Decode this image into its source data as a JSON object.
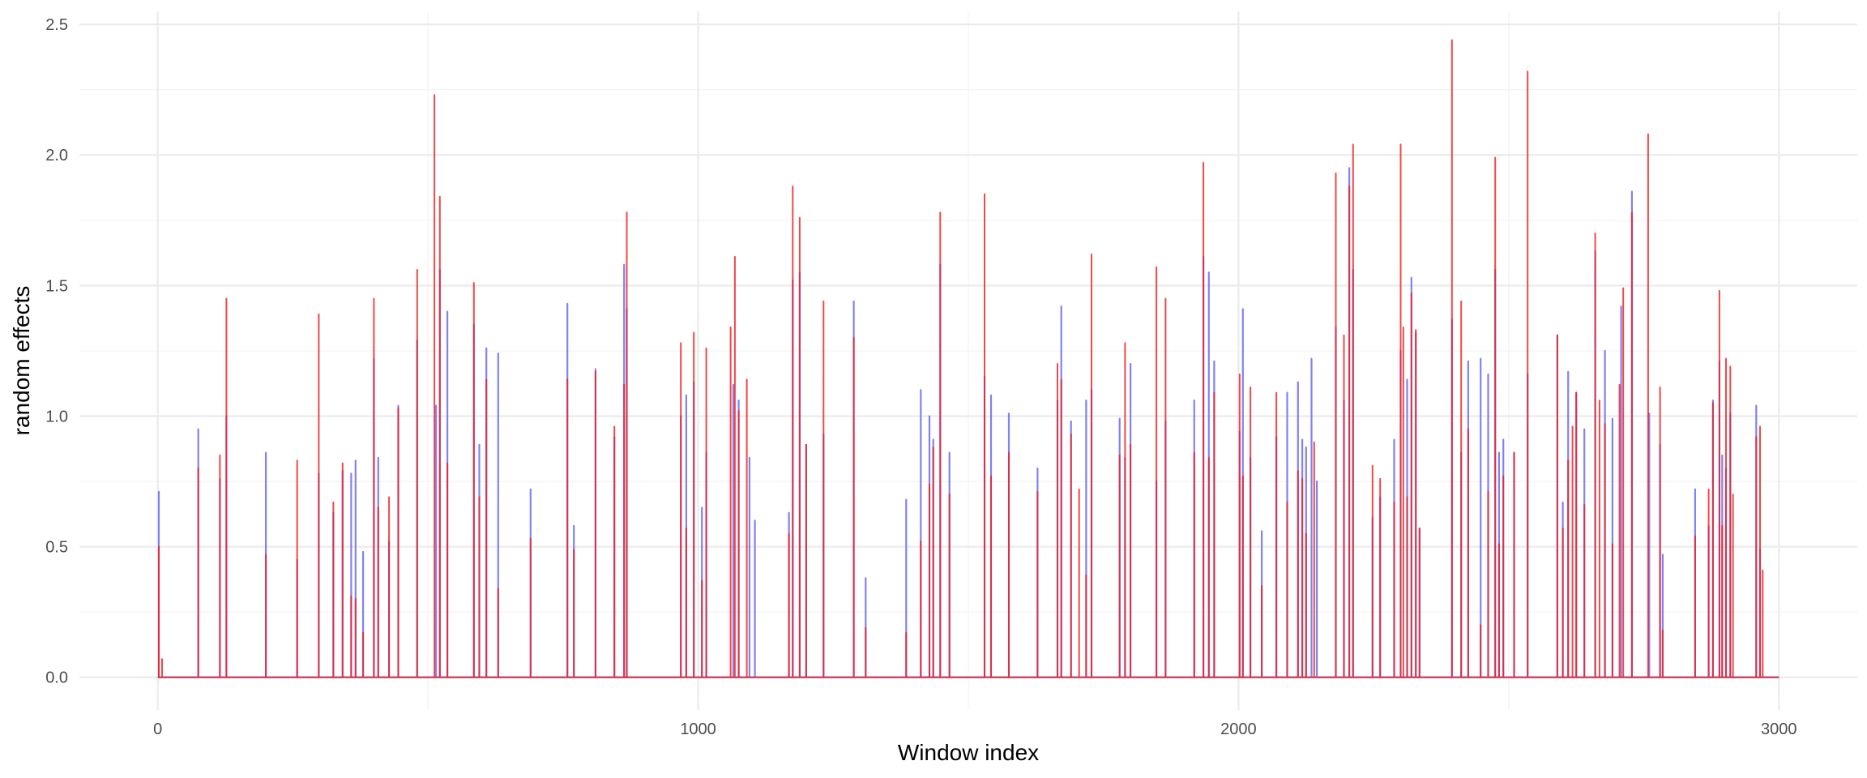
{
  "chart_data": {
    "type": "line",
    "title": "",
    "xlabel": "Window index",
    "ylabel": "random effects",
    "xlim": [
      -145,
      3145
    ],
    "ylim": [
      -0.125,
      2.55
    ],
    "x_ticks": [
      0,
      1000,
      2000,
      3000
    ],
    "y_ticks": [
      0.0,
      0.5,
      1.0,
      1.5,
      2.0,
      2.5
    ],
    "x_tick_labels": [
      "0",
      "1000",
      "2000",
      "3000"
    ],
    "y_tick_labels": [
      "0.0",
      "0.5",
      "1.0",
      "1.5",
      "2.0",
      "2.5"
    ],
    "grid": true,
    "legend": "none",
    "baseline": 0,
    "series": [
      {
        "color": "#6b6bf5",
        "spikes": [
          [
            2,
            0.71
          ],
          [
            75,
            0.95
          ],
          [
            115,
            0.76
          ],
          [
            127,
            1.0
          ],
          [
            200,
            0.86
          ],
          [
            258,
            0.45
          ],
          [
            298,
            0.78
          ],
          [
            325,
            0.63
          ],
          [
            342,
            0.79
          ],
          [
            358,
            0.78
          ],
          [
            366,
            0.83
          ],
          [
            380,
            0.48
          ],
          [
            400,
            1.22
          ],
          [
            408,
            0.84
          ],
          [
            428,
            0.52
          ],
          [
            445,
            1.04
          ],
          [
            480,
            1.29
          ],
          [
            515,
            1.04
          ],
          [
            522,
            1.56
          ],
          [
            536,
            1.4
          ],
          [
            585,
            1.35
          ],
          [
            595,
            0.89
          ],
          [
            608,
            1.26
          ],
          [
            630,
            1.24
          ],
          [
            690,
            0.72
          ],
          [
            758,
            1.43
          ],
          [
            770,
            0.58
          ],
          [
            810,
            1.18
          ],
          [
            845,
            0.92
          ],
          [
            863,
            1.58
          ],
          [
            868,
            1.41
          ],
          [
            968,
            1.0
          ],
          [
            978,
            1.08
          ],
          [
            992,
            1.13
          ],
          [
            1007,
            0.65
          ],
          [
            1015,
            0.86
          ],
          [
            1065,
            1.12
          ],
          [
            1075,
            1.06
          ],
          [
            1095,
            0.84
          ],
          [
            1105,
            0.6
          ],
          [
            1168,
            0.63
          ],
          [
            1175,
            1.52
          ],
          [
            1188,
            1.55
          ],
          [
            1200,
            0.89
          ],
          [
            1232,
            0.93
          ],
          [
            1288,
            1.44
          ],
          [
            1310,
            0.38
          ],
          [
            1385,
            0.68
          ],
          [
            1412,
            1.1
          ],
          [
            1428,
            1.0
          ],
          [
            1435,
            0.91
          ],
          [
            1448,
            1.58
          ],
          [
            1465,
            0.86
          ],
          [
            1530,
            1.15
          ],
          [
            1542,
            1.08
          ],
          [
            1575,
            1.01
          ],
          [
            1628,
            0.8
          ],
          [
            1665,
            1.06
          ],
          [
            1672,
            1.42
          ],
          [
            1690,
            0.98
          ],
          [
            1718,
            1.06
          ],
          [
            1728,
            1.1
          ],
          [
            1780,
            0.99
          ],
          [
            1790,
            0.84
          ],
          [
            1800,
            1.2
          ],
          [
            1848,
            0.75
          ],
          [
            1865,
            0.98
          ],
          [
            1918,
            1.06
          ],
          [
            1935,
            1.61
          ],
          [
            1945,
            1.55
          ],
          [
            1955,
            1.21
          ],
          [
            2002,
            0.94
          ],
          [
            2008,
            1.41
          ],
          [
            2022,
            0.84
          ],
          [
            2043,
            0.56
          ],
          [
            2070,
            0.92
          ],
          [
            2090,
            1.09
          ],
          [
            2110,
            1.13
          ],
          [
            2118,
            0.91
          ],
          [
            2125,
            0.88
          ],
          [
            2135,
            1.22
          ],
          [
            2145,
            0.75
          ],
          [
            2180,
            1.34
          ],
          [
            2195,
            1.06
          ],
          [
            2205,
            1.95
          ],
          [
            2212,
            1.56
          ],
          [
            2248,
            0.61
          ],
          [
            2262,
            0.69
          ],
          [
            2288,
            0.91
          ],
          [
            2300,
            1.25
          ],
          [
            2312,
            1.14
          ],
          [
            2320,
            1.53
          ],
          [
            2328,
            1.32
          ],
          [
            2335,
            0.57
          ],
          [
            2395,
            1.37
          ],
          [
            2412,
            0.86
          ],
          [
            2425,
            1.21
          ],
          [
            2448,
            1.22
          ],
          [
            2462,
            1.16
          ],
          [
            2475,
            1.56
          ],
          [
            2482,
            0.86
          ],
          [
            2490,
            0.91
          ],
          [
            2510,
            0.86
          ],
          [
            2535,
            1.16
          ],
          [
            2590,
            1.31
          ],
          [
            2600,
            0.67
          ],
          [
            2610,
            1.17
          ],
          [
            2625,
            1.09
          ],
          [
            2640,
            0.95
          ],
          [
            2660,
            1.63
          ],
          [
            2678,
            1.25
          ],
          [
            2692,
            0.99
          ],
          [
            2708,
            1.42
          ],
          [
            2728,
            1.86
          ],
          [
            2760,
            1.01
          ],
          [
            2780,
            0.89
          ],
          [
            2785,
            0.47
          ],
          [
            2845,
            0.72
          ],
          [
            2870,
            0.58
          ],
          [
            2878,
            1.06
          ],
          [
            2890,
            1.21
          ],
          [
            2895,
            0.85
          ],
          [
            2902,
            0.8
          ],
          [
            2910,
            1.01
          ],
          [
            2958,
            1.04
          ],
          [
            2965,
            0.49
          ]
        ]
      },
      {
        "color": "#ef2020",
        "spikes": [
          [
            2,
            0.5
          ],
          [
            8,
            0.07
          ],
          [
            75,
            0.8
          ],
          [
            115,
            0.85
          ],
          [
            127,
            1.45
          ],
          [
            200,
            0.47
          ],
          [
            258,
            0.83
          ],
          [
            298,
            1.39
          ],
          [
            325,
            0.67
          ],
          [
            342,
            0.82
          ],
          [
            358,
            0.31
          ],
          [
            366,
            0.3
          ],
          [
            380,
            0.17
          ],
          [
            400,
            1.45
          ],
          [
            408,
            0.65
          ],
          [
            428,
            0.69
          ],
          [
            445,
            1.03
          ],
          [
            480,
            1.56
          ],
          [
            512,
            2.23
          ],
          [
            522,
            1.84
          ],
          [
            536,
            0.82
          ],
          [
            585,
            1.51
          ],
          [
            595,
            0.69
          ],
          [
            608,
            1.14
          ],
          [
            630,
            0.34
          ],
          [
            690,
            0.53
          ],
          [
            758,
            1.14
          ],
          [
            770,
            0.49
          ],
          [
            810,
            1.17
          ],
          [
            845,
            0.96
          ],
          [
            863,
            1.12
          ],
          [
            868,
            1.78
          ],
          [
            968,
            1.28
          ],
          [
            978,
            0.57
          ],
          [
            992,
            1.32
          ],
          [
            1007,
            0.37
          ],
          [
            1015,
            1.26
          ],
          [
            1060,
            1.34
          ],
          [
            1068,
            1.61
          ],
          [
            1075,
            1.02
          ],
          [
            1090,
            1.14
          ],
          [
            1168,
            0.55
          ],
          [
            1175,
            1.88
          ],
          [
            1188,
            1.76
          ],
          [
            1200,
            0.89
          ],
          [
            1232,
            1.44
          ],
          [
            1288,
            1.3
          ],
          [
            1310,
            0.19
          ],
          [
            1385,
            0.17
          ],
          [
            1412,
            0.52
          ],
          [
            1428,
            0.74
          ],
          [
            1435,
            0.88
          ],
          [
            1448,
            1.78
          ],
          [
            1465,
            0.7
          ],
          [
            1530,
            1.85
          ],
          [
            1542,
            0.77
          ],
          [
            1575,
            0.86
          ],
          [
            1628,
            0.71
          ],
          [
            1665,
            1.2
          ],
          [
            1672,
            1.14
          ],
          [
            1690,
            0.93
          ],
          [
            1705,
            0.72
          ],
          [
            1718,
            0.39
          ],
          [
            1728,
            1.62
          ],
          [
            1780,
            0.85
          ],
          [
            1790,
            1.28
          ],
          [
            1800,
            0.89
          ],
          [
            1848,
            1.57
          ],
          [
            1865,
            1.45
          ],
          [
            1918,
            0.86
          ],
          [
            1935,
            1.97
          ],
          [
            1945,
            0.84
          ],
          [
            1955,
            1.09
          ],
          [
            2002,
            1.16
          ],
          [
            2008,
            0.77
          ],
          [
            2022,
            1.11
          ],
          [
            2043,
            0.35
          ],
          [
            2070,
            1.09
          ],
          [
            2090,
            0.67
          ],
          [
            2110,
            0.79
          ],
          [
            2118,
            0.76
          ],
          [
            2125,
            0.55
          ],
          [
            2140,
            0.9
          ],
          [
            2180,
            1.93
          ],
          [
            2195,
            1.31
          ],
          [
            2205,
            1.88
          ],
          [
            2212,
            2.04
          ],
          [
            2248,
            0.81
          ],
          [
            2262,
            0.76
          ],
          [
            2288,
            0.67
          ],
          [
            2300,
            2.04
          ],
          [
            2305,
            1.34
          ],
          [
            2312,
            0.69
          ],
          [
            2320,
            1.47
          ],
          [
            2328,
            1.33
          ],
          [
            2335,
            0.57
          ],
          [
            2395,
            2.44
          ],
          [
            2412,
            1.44
          ],
          [
            2425,
            0.95
          ],
          [
            2448,
            0.2
          ],
          [
            2462,
            0.71
          ],
          [
            2475,
            1.99
          ],
          [
            2482,
            0.51
          ],
          [
            2490,
            0.77
          ],
          [
            2510,
            0.86
          ],
          [
            2535,
            2.32
          ],
          [
            2590,
            1.31
          ],
          [
            2600,
            0.57
          ],
          [
            2610,
            0.83
          ],
          [
            2618,
            0.96
          ],
          [
            2625,
            1.09
          ],
          [
            2640,
            0.66
          ],
          [
            2660,
            1.7
          ],
          [
            2668,
            1.06
          ],
          [
            2678,
            0.97
          ],
          [
            2692,
            0.51
          ],
          [
            2705,
            1.12
          ],
          [
            2712,
            1.49
          ],
          [
            2728,
            1.78
          ],
          [
            2758,
            2.08
          ],
          [
            2780,
            1.11
          ],
          [
            2785,
            0.18
          ],
          [
            2845,
            0.54
          ],
          [
            2870,
            0.72
          ],
          [
            2878,
            1.05
          ],
          [
            2890,
            1.48
          ],
          [
            2895,
            0.58
          ],
          [
            2902,
            1.22
          ],
          [
            2910,
            1.19
          ],
          [
            2915,
            0.7
          ],
          [
            2958,
            0.92
          ],
          [
            2965,
            0.96
          ],
          [
            2970,
            0.41
          ]
        ]
      }
    ]
  }
}
